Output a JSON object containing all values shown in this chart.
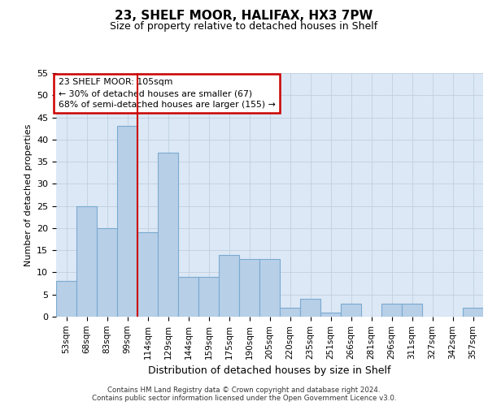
{
  "title": "23, SHELF MOOR, HALIFAX, HX3 7PW",
  "subtitle": "Size of property relative to detached houses in Shelf",
  "xlabel": "Distribution of detached houses by size in Shelf",
  "ylabel": "Number of detached properties",
  "categories": [
    "53sqm",
    "68sqm",
    "83sqm",
    "99sqm",
    "114sqm",
    "129sqm",
    "144sqm",
    "159sqm",
    "175sqm",
    "190sqm",
    "205sqm",
    "220sqm",
    "235sqm",
    "251sqm",
    "266sqm",
    "281sqm",
    "296sqm",
    "311sqm",
    "327sqm",
    "342sqm",
    "357sqm"
  ],
  "values": [
    8,
    25,
    20,
    43,
    19,
    37,
    9,
    9,
    14,
    13,
    13,
    2,
    4,
    1,
    3,
    0,
    3,
    3,
    0,
    0,
    2
  ],
  "bar_color": "#b8cfe8",
  "bar_edge_color": "#7aaad0",
  "annotation_text": "23 SHELF MOOR: 105sqm\n← 30% of detached houses are smaller (67)\n68% of semi-detached houses are larger (155) →",
  "annotation_box_color": "#ffffff",
  "annotation_box_edge_color": "#cc0000",
  "red_line_x": 3.5,
  "ylim": [
    0,
    55
  ],
  "yticks": [
    0,
    5,
    10,
    15,
    20,
    25,
    30,
    35,
    40,
    45,
    50,
    55
  ],
  "background_color": "#dce8f5",
  "footer_line1": "Contains HM Land Registry data © Crown copyright and database right 2024.",
  "footer_line2": "Contains public sector information licensed under the Open Government Licence v3.0."
}
